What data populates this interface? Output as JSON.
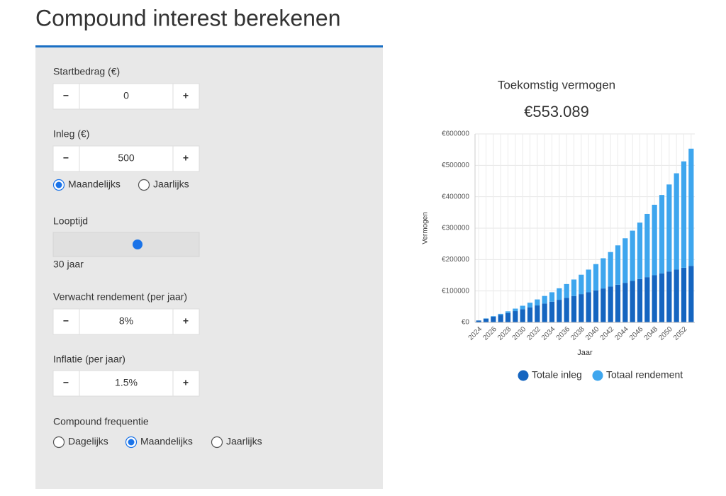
{
  "header": {
    "title": "Compound interest berekenen"
  },
  "buttons": {
    "minus": "−",
    "plus": "+"
  },
  "startbedrag": {
    "label": "Startbedrag (€)",
    "value": "0"
  },
  "inleg": {
    "label": "Inleg (€)",
    "value": "500",
    "options": [
      "Maandelijks",
      "Jaarlijks"
    ],
    "selected": 0
  },
  "looptijd": {
    "label": "Looptijd",
    "value_text": "30 jaar"
  },
  "rendement": {
    "label": "Verwacht rendement (per jaar)",
    "value": "8%"
  },
  "inflatie": {
    "label": "Inflatie (per jaar)",
    "value": "1.5%"
  },
  "frequentie": {
    "label": "Compound frequentie",
    "options": [
      "Dagelijks",
      "Maandelijks",
      "Jaarlijks"
    ],
    "selected": 1
  },
  "chart_data": {
    "type": "stacked_bar",
    "title": "Toekomstig vermogen",
    "headline": "€553.089",
    "xlabel": "Jaar",
    "ylabel": "Vermogen",
    "categories": [
      "2024",
      null,
      "2026",
      null,
      "2028",
      null,
      "2030",
      null,
      "2032",
      null,
      "2034",
      null,
      "2036",
      null,
      "2038",
      null,
      "2040",
      null,
      "2042",
      null,
      "2044",
      null,
      "2046",
      null,
      "2048",
      null,
      "2050",
      null,
      "2052",
      null
    ],
    "series": [
      {
        "name": "Totale inleg",
        "color": "#1565c0",
        "values": [
          6000,
          12000,
          18000,
          24000,
          30000,
          36000,
          42000,
          48000,
          54000,
          60000,
          66000,
          72000,
          78000,
          84000,
          90000,
          96000,
          102000,
          108000,
          114000,
          120000,
          126000,
          132000,
          138000,
          144000,
          150000,
          156000,
          162000,
          168000,
          174000,
          180000
        ]
      },
      {
        "name": "Totaal rendement",
        "color": "#3ea6ee",
        "values": [
          200,
          800,
          1800,
          3300,
          5300,
          7900,
          11000,
          14700,
          19100,
          24200,
          30000,
          36600,
          44100,
          52500,
          61800,
          72100,
          83600,
          96200,
          110000,
          125200,
          141800,
          160000,
          179700,
          201200,
          224500,
          249700,
          277100,
          306700,
          338600,
          373089
        ]
      }
    ],
    "ylim": [
      0,
      600000
    ],
    "yticks": [
      {
        "value": 0,
        "label": "€0"
      },
      {
        "value": 100000,
        "label": "€100000"
      },
      {
        "value": 200000,
        "label": "€200000"
      },
      {
        "value": 300000,
        "label": "€300000"
      },
      {
        "value": 400000,
        "label": "€400000"
      },
      {
        "value": 500000,
        "label": "€500000"
      },
      {
        "value": 600000,
        "label": "€600000"
      }
    ],
    "grid": true,
    "legend": "bottom"
  }
}
